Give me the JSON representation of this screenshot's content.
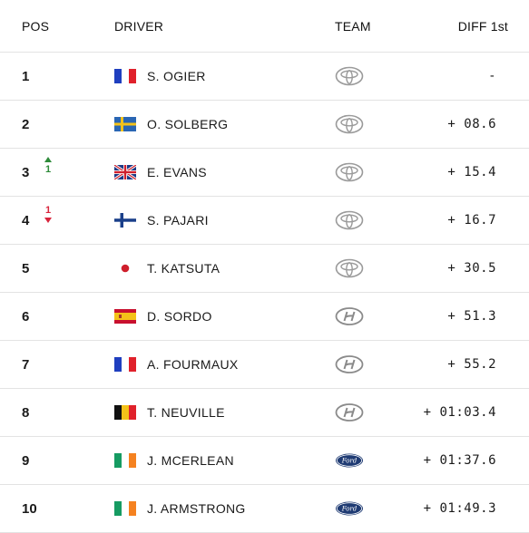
{
  "header": {
    "pos": "POS",
    "driver": "DRIVER",
    "team": "TEAM",
    "diff": "DIFF 1st"
  },
  "rows": [
    {
      "pos": "1",
      "change": "",
      "change_dir": "",
      "flag": "france",
      "driver": "S. OGIER",
      "team": "toyota",
      "diff": "-"
    },
    {
      "pos": "2",
      "change": "",
      "change_dir": "",
      "flag": "sweden",
      "driver": "O. SOLBERG",
      "team": "toyota",
      "diff": "+ 08.6"
    },
    {
      "pos": "3",
      "change": "1",
      "change_dir": "up",
      "flag": "uk",
      "driver": "E. EVANS",
      "team": "toyota",
      "diff": "+ 15.4"
    },
    {
      "pos": "4",
      "change": "1",
      "change_dir": "down",
      "flag": "finland",
      "driver": "S. PAJARI",
      "team": "toyota",
      "diff": "+ 16.7"
    },
    {
      "pos": "5",
      "change": "",
      "change_dir": "",
      "flag": "japan",
      "driver": "T. KATSUTA",
      "team": "toyota",
      "diff": "+ 30.5"
    },
    {
      "pos": "6",
      "change": "",
      "change_dir": "",
      "flag": "spain",
      "driver": "D. SORDO",
      "team": "hyundai",
      "diff": "+ 51.3"
    },
    {
      "pos": "7",
      "change": "",
      "change_dir": "",
      "flag": "france",
      "driver": "A. FOURMAUX",
      "team": "hyundai",
      "diff": "+ 55.2"
    },
    {
      "pos": "8",
      "change": "",
      "change_dir": "",
      "flag": "belgium",
      "driver": "T. NEUVILLE",
      "team": "hyundai",
      "diff": "+ 01:03.4"
    },
    {
      "pos": "9",
      "change": "",
      "change_dir": "",
      "flag": "ireland",
      "driver": "J. MCERLEAN",
      "team": "ford",
      "diff": "+ 01:37.6"
    },
    {
      "pos": "10",
      "change": "",
      "change_dir": "",
      "flag": "ireland",
      "driver": "J. ARMSTRONG",
      "team": "ford",
      "diff": "+ 01:49.3"
    }
  ],
  "colors": {
    "up": "#2e8b3a",
    "down": "#d8243c",
    "divider": "#e3e3e3",
    "ford_blue": "#1f3b73"
  }
}
